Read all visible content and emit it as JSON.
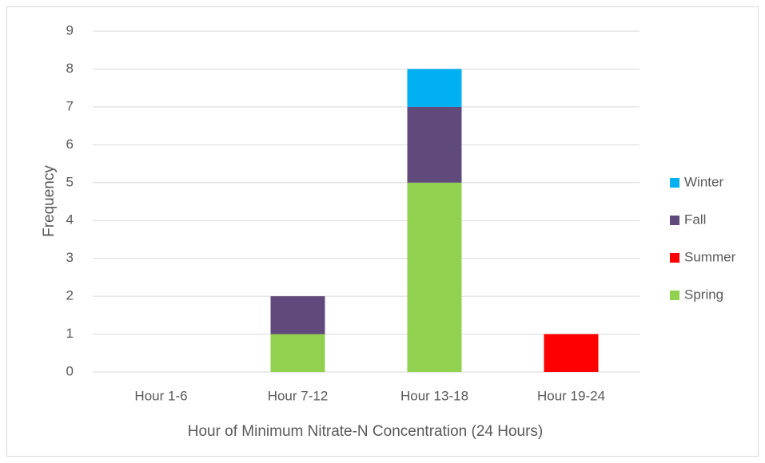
{
  "chart_data": {
    "type": "stacked_bar",
    "x_label": "Hour of Minimum Nitrate-N Concentration (24 Hours)",
    "y_label": "Frequency",
    "categories": [
      "Hour 1-6",
      "Hour 7-12",
      "Hour 13-18",
      "Hour 19-24"
    ],
    "series": [
      {
        "name": "Spring",
        "color": "#92d050",
        "values": [
          0,
          1,
          5,
          0
        ]
      },
      {
        "name": "Summer",
        "color": "#ff0000",
        "values": [
          0,
          0,
          0,
          1
        ]
      },
      {
        "name": "Fall",
        "color": "#604a7b",
        "values": [
          0,
          1,
          2,
          0
        ]
      },
      {
        "name": "Winter",
        "color": "#00b0f0",
        "values": [
          0,
          0,
          1,
          0
        ]
      }
    ],
    "ylim": [
      0,
      9
    ],
    "yticks": [
      0,
      1,
      2,
      3,
      4,
      5,
      6,
      7,
      8,
      9
    ],
    "grid": true,
    "legend": "right"
  }
}
